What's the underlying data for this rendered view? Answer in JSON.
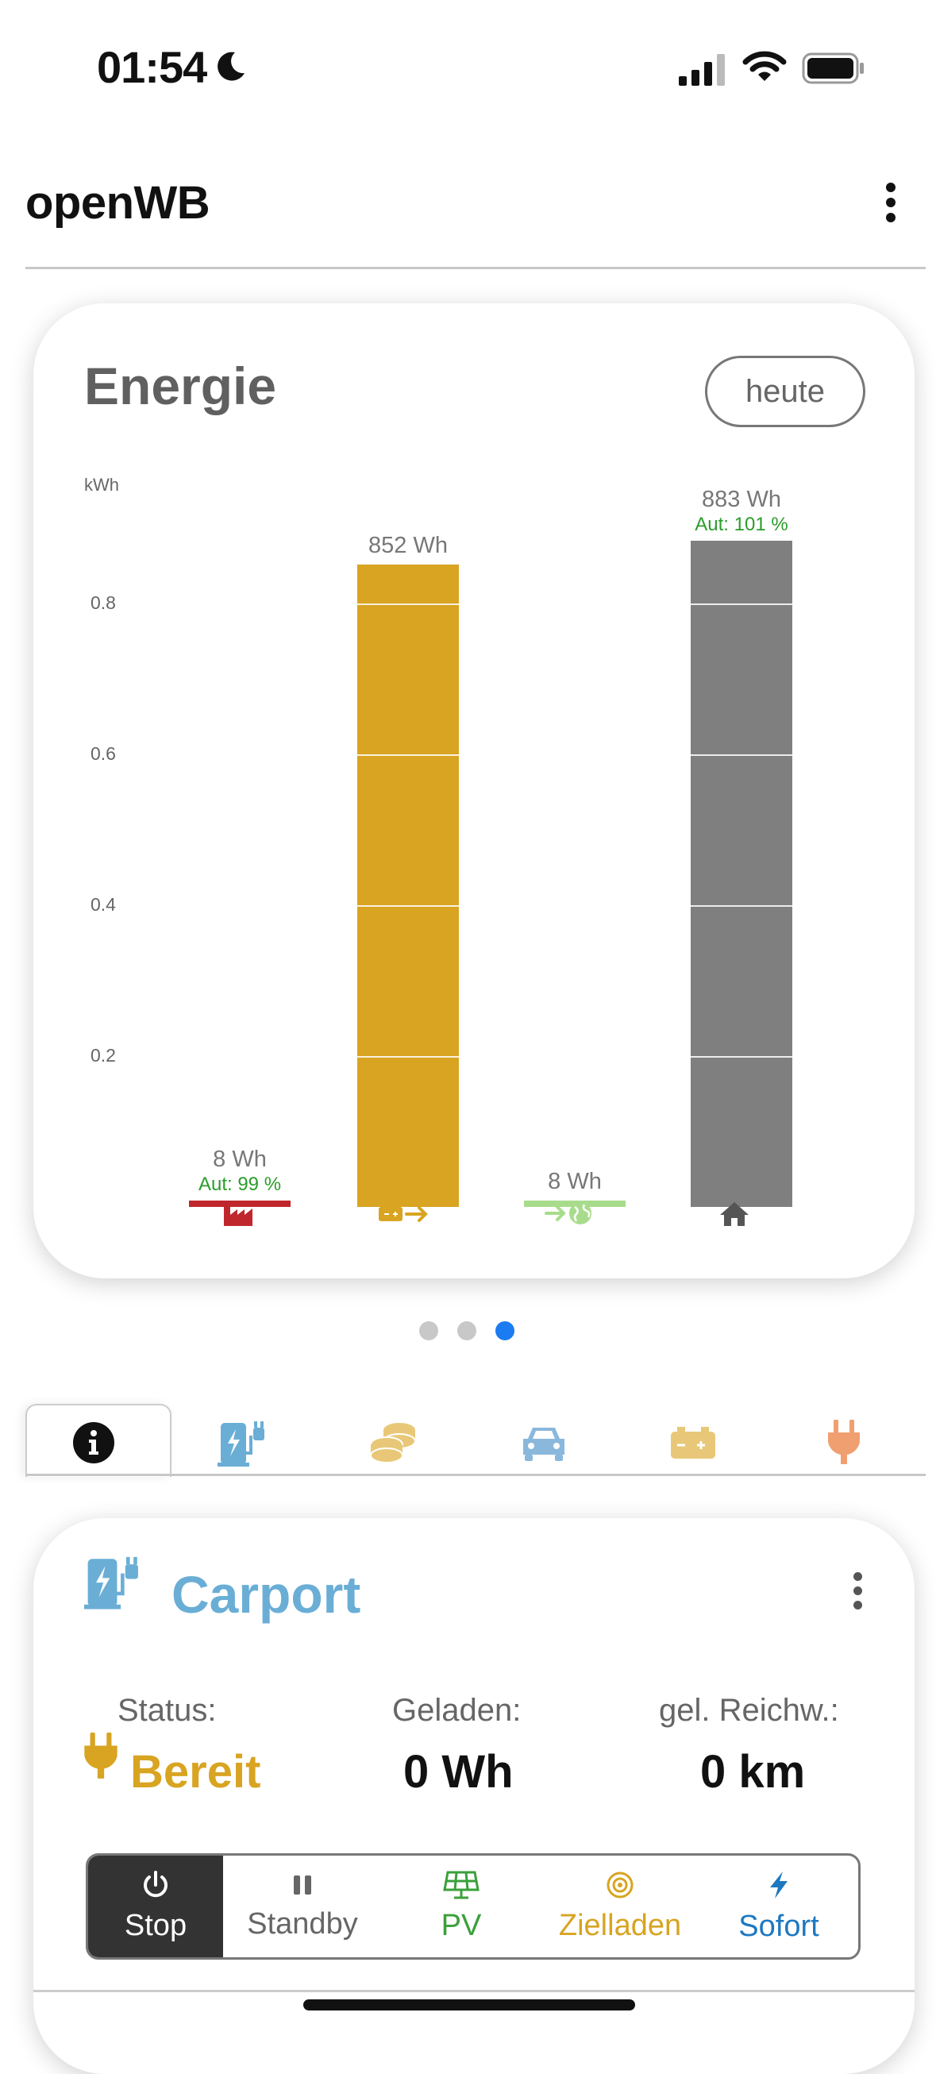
{
  "status_bar": {
    "time": "01:54"
  },
  "header": {
    "title": "openWB"
  },
  "energy_card": {
    "title": "Energie",
    "range_button": "heute",
    "unit": "kWh",
    "ticks": [
      "0.8",
      "0.6",
      "0.4",
      "0.2"
    ],
    "bars": [
      {
        "label": "8 Wh",
        "aut": "Aut: 99 %",
        "icon": "factory-icon",
        "color": "#c0272d"
      },
      {
        "label": "852 Wh",
        "aut": "",
        "icon": "battery-export-icon",
        "color": "#d8a421"
      },
      {
        "label": "8 Wh",
        "aut": "",
        "icon": "grid-export-icon",
        "color": "#a8dc8c"
      },
      {
        "label": "883 Wh",
        "aut": "Aut: 101 %",
        "icon": "house-icon",
        "color": "#7f7f7f"
      }
    ]
  },
  "chart_data": {
    "type": "bar",
    "title": "Energie",
    "ylabel": "kWh",
    "categories": [
      "factory-icon",
      "battery-export-icon",
      "grid-export-icon",
      "house-icon"
    ],
    "values": [
      0.008,
      0.852,
      0.008,
      0.883
    ],
    "data_labels": [
      "8 Wh",
      "852 Wh",
      "8 Wh",
      "883 Wh"
    ],
    "ylim": [
      0,
      0.9
    ],
    "yticks": [
      0.2,
      0.4,
      0.6,
      0.8
    ],
    "colors": [
      "#c0272d",
      "#d8a421",
      "#a8dc8c",
      "#7f7f7f"
    ]
  },
  "pager": {
    "count": 3,
    "active": 3
  },
  "tabs": [
    {
      "icon": "info-icon",
      "active": true
    },
    {
      "icon": "charge-point-icon",
      "color": "#6aaed6"
    },
    {
      "icon": "coins-icon",
      "color": "#e8c878"
    },
    {
      "icon": "car-icon",
      "color": "#8ab8dc"
    },
    {
      "icon": "battery-icon",
      "color": "#e8c878"
    },
    {
      "icon": "plug-icon",
      "color": "#f0a070"
    }
  ],
  "carport": {
    "title": "Carport",
    "status_label": "Status:",
    "status_value": "Bereit",
    "charged_label": "Geladen:",
    "charged_value": "0 Wh",
    "range_label": "gel. Reichw.:",
    "range_value": "0 km"
  },
  "modes": [
    {
      "label": "Stop",
      "icon": "power-icon",
      "active": true,
      "color": "#ffffff"
    },
    {
      "label": "Standby",
      "icon": "pause-icon",
      "color": "#666666"
    },
    {
      "label": "PV",
      "icon": "solar-panel-icon",
      "color": "#3aa03a"
    },
    {
      "label": "Zielladen",
      "icon": "target-icon",
      "color": "#d8a421"
    },
    {
      "label": "Sofort",
      "icon": "bolt-icon",
      "color": "#1e78c0"
    }
  ]
}
